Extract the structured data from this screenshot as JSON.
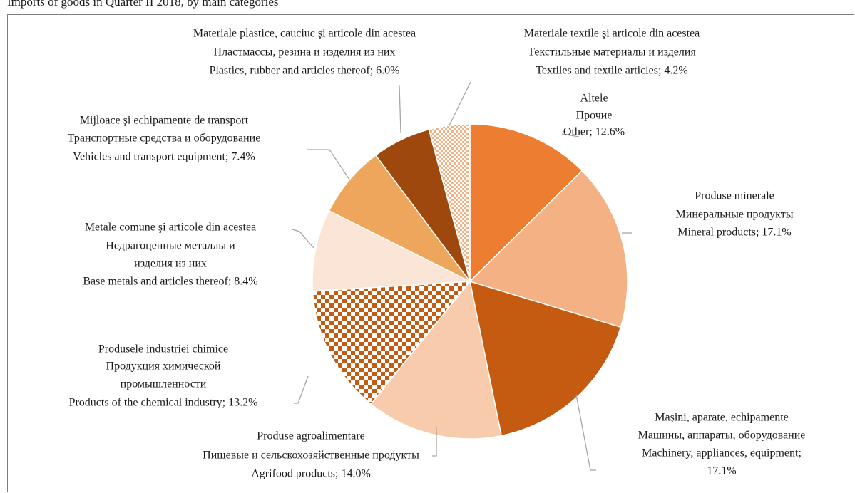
{
  "chart_data": {
    "type": "pie",
    "title": "Imports of goods in Quarter II 2018, by main categories",
    "categories": [
      [
        "Altele",
        "Прочие",
        "Other; 12.6%"
      ],
      [
        "Produse minerale",
        "Минеральные продукты",
        "Mineral products; 17.1%"
      ],
      [
        "Mașini, aparate, echipamente",
        "Машины, аппараты, оборудование",
        "Machinery, appliances, equipment;",
        "17.1%"
      ],
      [
        "Produse agroalimentare",
        "Пищевые и сельскохозяйственные продукты",
        "Agrifood products; 14.0%"
      ],
      [
        "Produsele industriei chimice",
        "Продукция химической",
        "промышленности",
        "Products of the chemical industry; 13.2%"
      ],
      [
        "Metale comune şi articole din acestea",
        "Недрагоценные металлы и",
        "изделия из них",
        "Base metals and articles thereof; 8.4%"
      ],
      [
        "Mijloace şi echipamente de transport",
        "Транспортные средства и оборудование",
        "Vehicles and  transport equipment; 7.4%"
      ],
      [
        "Materiale plastice, cauciuc şi articole din acestea",
        "Пластмассы, резина и изделия из них",
        "Plastics, rubber and articles thereof; 6.0%"
      ],
      [
        "Materiale textile şi articole din acestea",
        "Текстильные материалы и изделия",
        "Textiles and textile articles; 4.2%"
      ]
    ],
    "values": [
      12.6,
      17.1,
      17.1,
      14.0,
      13.2,
      8.4,
      7.4,
      6.0,
      4.2
    ],
    "colors": [
      "#ed7d31",
      "#f4b183",
      "#c55a11",
      "#f8cbad",
      "#c55a11",
      "#fbe5d6",
      "#eea55c",
      "#9e480e",
      "#ed7d31"
    ],
    "patterns": [
      null,
      null,
      null,
      null,
      "checker",
      null,
      null,
      null,
      "dots"
    ]
  }
}
